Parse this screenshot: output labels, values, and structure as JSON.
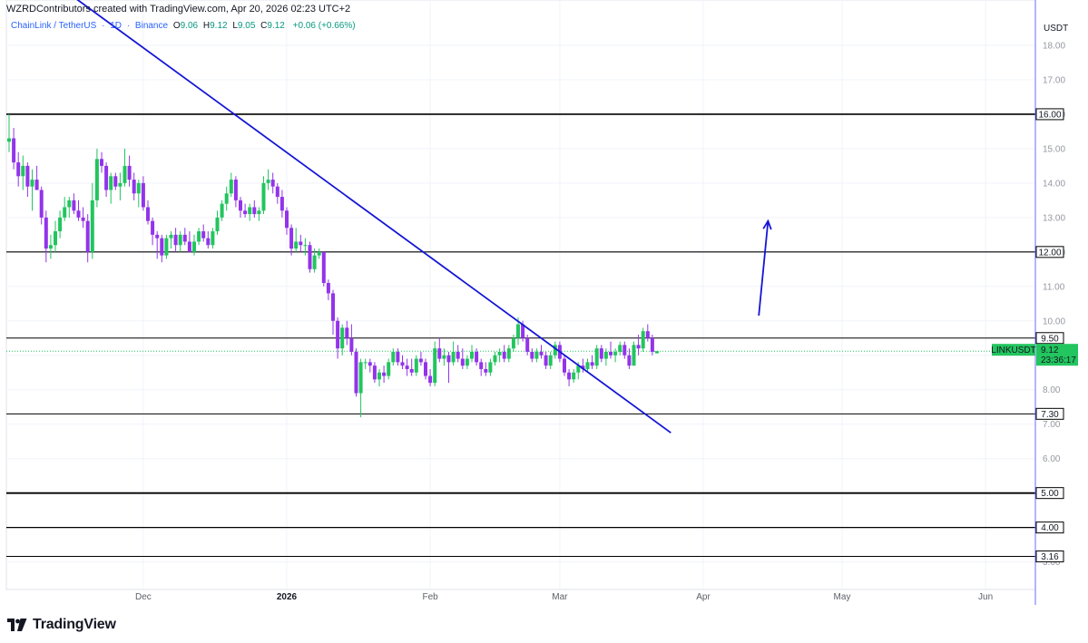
{
  "header": {
    "credit": "WZRDContributors created with TradingView.com, Apr 20, 2026 02:23 UTC+2"
  },
  "legend": {
    "symbol": "ChainLink / TetherUS",
    "interval": "1D",
    "exchange": "Binance",
    "open_label": "O",
    "open": "9.06",
    "high_label": "H",
    "high": "9.12",
    "low_label": "L",
    "low": "9.05",
    "close_label": "C",
    "close": "9.12",
    "change": "+0.06 (+0.66%)"
  },
  "axis": {
    "currency": "USDT"
  },
  "brand": {
    "name": "TradingView"
  },
  "colors": {
    "up": "#22c55e",
    "down": "#9333ea",
    "trendline": "#1515d6",
    "level": "#000000",
    "price_tag": "#22c55e"
  },
  "chart_data": {
    "type": "candlestick",
    "symbol": "LINKUSDT",
    "timeframe": "1D",
    "ylim": [
      2.2,
      19.0
    ],
    "y_ticks": [
      "3.00",
      "4.00",
      "5.00",
      "6.00",
      "7.00",
      "8.00",
      "9.00",
      "10.00",
      "11.00",
      "12.00",
      "13.00",
      "14.00",
      "15.00",
      "16.00",
      "17.00",
      "18.00"
    ],
    "x_ticks": [
      {
        "label": "Dec",
        "index": 29,
        "bold": false
      },
      {
        "label": "2026",
        "index": 60,
        "bold": true
      },
      {
        "label": "Feb",
        "index": 91,
        "bold": false
      },
      {
        "label": "Mar",
        "index": 119,
        "bold": false
      },
      {
        "label": "Apr",
        "index": 150,
        "bold": false
      },
      {
        "label": "May",
        "index": 180,
        "bold": false
      },
      {
        "label": "Jun",
        "index": 211,
        "bold": false
      }
    ],
    "horizontal_levels": [
      {
        "value": 16.0,
        "label": "16.00",
        "width": 1.6
      },
      {
        "value": 12.0,
        "label": "12.00",
        "width": 1.2
      },
      {
        "value": 9.5,
        "label": "9.50",
        "width": 1.0
      },
      {
        "value": 7.3,
        "label": "7.30",
        "width": 1.0
      },
      {
        "value": 5.0,
        "label": "5.00",
        "width": 1.8
      },
      {
        "value": 4.0,
        "label": "4.00",
        "width": 1.2
      },
      {
        "value": 3.16,
        "label": "3.16",
        "width": 1.0
      }
    ],
    "trendline": {
      "start": {
        "index": 14,
        "value": 19.4
      },
      "end": {
        "index": 143,
        "value": 6.75
      }
    },
    "arrow": {
      "start": {
        "index": 162,
        "value": 10.15
      },
      "end": {
        "index": 164,
        "value": 12.9
      }
    },
    "last_price": {
      "symbol": "LINKUSDT",
      "price": "9.12",
      "countdown": "23:36:17",
      "value": 9.12
    },
    "candles": [
      {
        "i": 0,
        "o": 15.2,
        "h": 16.0,
        "l": 14.9,
        "c": 15.3
      },
      {
        "i": 1,
        "o": 15.3,
        "h": 15.6,
        "l": 14.4,
        "c": 14.6
      },
      {
        "i": 2,
        "o": 14.6,
        "h": 14.9,
        "l": 13.9,
        "c": 14.2
      },
      {
        "i": 3,
        "o": 14.2,
        "h": 14.8,
        "l": 13.8,
        "c": 14.5
      },
      {
        "i": 4,
        "o": 14.5,
        "h": 14.6,
        "l": 13.6,
        "c": 13.9
      },
      {
        "i": 5,
        "o": 13.9,
        "h": 14.4,
        "l": 13.2,
        "c": 14.1
      },
      {
        "i": 6,
        "o": 14.1,
        "h": 14.5,
        "l": 13.8,
        "c": 13.8
      },
      {
        "i": 7,
        "o": 13.8,
        "h": 13.9,
        "l": 12.8,
        "c": 13.0
      },
      {
        "i": 8,
        "o": 13.0,
        "h": 13.2,
        "l": 11.7,
        "c": 12.1
      },
      {
        "i": 9,
        "o": 12.1,
        "h": 12.5,
        "l": 11.8,
        "c": 12.2
      },
      {
        "i": 10,
        "o": 12.2,
        "h": 12.9,
        "l": 12.0,
        "c": 12.6
      },
      {
        "i": 11,
        "o": 12.6,
        "h": 13.2,
        "l": 12.4,
        "c": 13.0
      },
      {
        "i": 12,
        "o": 13.0,
        "h": 13.6,
        "l": 12.9,
        "c": 13.3
      },
      {
        "i": 13,
        "o": 13.3,
        "h": 13.6,
        "l": 13.0,
        "c": 13.5
      },
      {
        "i": 14,
        "o": 13.5,
        "h": 13.7,
        "l": 13.1,
        "c": 13.2
      },
      {
        "i": 15,
        "o": 13.2,
        "h": 13.5,
        "l": 12.9,
        "c": 13.0
      },
      {
        "i": 16,
        "o": 13.0,
        "h": 13.3,
        "l": 12.7,
        "c": 12.9
      },
      {
        "i": 17,
        "o": 12.9,
        "h": 13.1,
        "l": 11.7,
        "c": 12.0
      },
      {
        "i": 18,
        "o": 12.0,
        "h": 14.0,
        "l": 11.8,
        "c": 13.5
      },
      {
        "i": 19,
        "o": 13.5,
        "h": 15.0,
        "l": 13.3,
        "c": 14.7
      },
      {
        "i": 20,
        "o": 14.7,
        "h": 14.9,
        "l": 14.3,
        "c": 14.5
      },
      {
        "i": 21,
        "o": 14.5,
        "h": 14.6,
        "l": 13.6,
        "c": 13.8
      },
      {
        "i": 22,
        "o": 13.8,
        "h": 14.3,
        "l": 13.4,
        "c": 14.2
      },
      {
        "i": 23,
        "o": 14.2,
        "h": 14.3,
        "l": 13.8,
        "c": 13.9
      },
      {
        "i": 24,
        "o": 13.9,
        "h": 14.3,
        "l": 13.5,
        "c": 14.0
      },
      {
        "i": 25,
        "o": 14.0,
        "h": 15.0,
        "l": 13.9,
        "c": 14.5
      },
      {
        "i": 26,
        "o": 14.5,
        "h": 14.8,
        "l": 13.9,
        "c": 14.1
      },
      {
        "i": 27,
        "o": 14.1,
        "h": 14.3,
        "l": 13.5,
        "c": 13.7
      },
      {
        "i": 28,
        "o": 13.7,
        "h": 14.1,
        "l": 13.3,
        "c": 14.0
      },
      {
        "i": 29,
        "o": 14.0,
        "h": 14.2,
        "l": 13.2,
        "c": 13.3
      },
      {
        "i": 30,
        "o": 13.3,
        "h": 13.5,
        "l": 12.8,
        "c": 12.9
      },
      {
        "i": 31,
        "o": 12.9,
        "h": 13.0,
        "l": 12.2,
        "c": 12.5
      },
      {
        "i": 32,
        "o": 12.5,
        "h": 12.6,
        "l": 11.8,
        "c": 12.4
      },
      {
        "i": 33,
        "o": 12.4,
        "h": 12.5,
        "l": 11.7,
        "c": 11.9
      },
      {
        "i": 34,
        "o": 11.9,
        "h": 12.5,
        "l": 11.8,
        "c": 12.4
      },
      {
        "i": 35,
        "o": 12.4,
        "h": 12.6,
        "l": 12.1,
        "c": 12.5
      },
      {
        "i": 36,
        "o": 12.5,
        "h": 12.7,
        "l": 12.0,
        "c": 12.2
      },
      {
        "i": 37,
        "o": 12.2,
        "h": 12.6,
        "l": 12.0,
        "c": 12.5
      },
      {
        "i": 38,
        "o": 12.5,
        "h": 12.7,
        "l": 12.2,
        "c": 12.3
      },
      {
        "i": 39,
        "o": 12.3,
        "h": 12.6,
        "l": 12.0,
        "c": 12.0
      },
      {
        "i": 40,
        "o": 12.0,
        "h": 12.5,
        "l": 11.9,
        "c": 12.3
      },
      {
        "i": 41,
        "o": 12.3,
        "h": 12.7,
        "l": 12.2,
        "c": 12.6
      },
      {
        "i": 42,
        "o": 12.6,
        "h": 12.8,
        "l": 12.3,
        "c": 12.4
      },
      {
        "i": 43,
        "o": 12.4,
        "h": 12.6,
        "l": 12.1,
        "c": 12.2
      },
      {
        "i": 44,
        "o": 12.2,
        "h": 12.7,
        "l": 12.1,
        "c": 12.6
      },
      {
        "i": 45,
        "o": 12.6,
        "h": 13.2,
        "l": 12.5,
        "c": 13.0
      },
      {
        "i": 46,
        "o": 13.0,
        "h": 13.5,
        "l": 12.9,
        "c": 13.4
      },
      {
        "i": 47,
        "o": 13.4,
        "h": 13.9,
        "l": 13.2,
        "c": 13.7
      },
      {
        "i": 48,
        "o": 13.7,
        "h": 14.3,
        "l": 13.6,
        "c": 14.1
      },
      {
        "i": 49,
        "o": 14.1,
        "h": 14.2,
        "l": 13.3,
        "c": 13.5
      },
      {
        "i": 50,
        "o": 13.5,
        "h": 13.6,
        "l": 13.0,
        "c": 13.2
      },
      {
        "i": 51,
        "o": 13.2,
        "h": 13.4,
        "l": 13.0,
        "c": 13.1
      },
      {
        "i": 52,
        "o": 13.1,
        "h": 13.4,
        "l": 12.9,
        "c": 13.3
      },
      {
        "i": 53,
        "o": 13.3,
        "h": 13.5,
        "l": 13.0,
        "c": 13.1
      },
      {
        "i": 54,
        "o": 13.1,
        "h": 13.3,
        "l": 12.9,
        "c": 13.2
      },
      {
        "i": 55,
        "o": 13.2,
        "h": 14.2,
        "l": 13.1,
        "c": 14.0
      },
      {
        "i": 56,
        "o": 14.0,
        "h": 14.4,
        "l": 13.8,
        "c": 14.1
      },
      {
        "i": 57,
        "o": 14.1,
        "h": 14.3,
        "l": 13.7,
        "c": 13.9
      },
      {
        "i": 58,
        "o": 13.9,
        "h": 14.0,
        "l": 13.4,
        "c": 13.6
      },
      {
        "i": 59,
        "o": 13.6,
        "h": 13.8,
        "l": 13.0,
        "c": 13.2
      },
      {
        "i": 60,
        "o": 13.2,
        "h": 13.3,
        "l": 12.5,
        "c": 12.7
      },
      {
        "i": 61,
        "o": 12.7,
        "h": 12.8,
        "l": 11.9,
        "c": 12.1
      },
      {
        "i": 62,
        "o": 12.1,
        "h": 12.7,
        "l": 12.0,
        "c": 12.3
      },
      {
        "i": 63,
        "o": 12.3,
        "h": 12.5,
        "l": 12.0,
        "c": 12.2
      },
      {
        "i": 64,
        "o": 12.2,
        "h": 12.4,
        "l": 11.9,
        "c": 12.2
      },
      {
        "i": 65,
        "o": 12.2,
        "h": 12.3,
        "l": 11.4,
        "c": 11.5
      },
      {
        "i": 66,
        "o": 11.5,
        "h": 12.1,
        "l": 11.4,
        "c": 11.9
      },
      {
        "i": 67,
        "o": 11.9,
        "h": 12.1,
        "l": 11.8,
        "c": 12.0
      },
      {
        "i": 68,
        "o": 12.0,
        "h": 12.0,
        "l": 11.0,
        "c": 11.1
      },
      {
        "i": 69,
        "o": 11.1,
        "h": 11.2,
        "l": 10.6,
        "c": 10.8
      },
      {
        "i": 70,
        "o": 10.8,
        "h": 10.9,
        "l": 9.6,
        "c": 10.0
      },
      {
        "i": 71,
        "o": 10.0,
        "h": 10.1,
        "l": 8.9,
        "c": 9.2
      },
      {
        "i": 72,
        "o": 9.2,
        "h": 9.9,
        "l": 9.0,
        "c": 9.8
      },
      {
        "i": 73,
        "o": 9.8,
        "h": 10.0,
        "l": 9.3,
        "c": 9.5
      },
      {
        "i": 74,
        "o": 9.5,
        "h": 9.9,
        "l": 9.0,
        "c": 9.1
      },
      {
        "i": 75,
        "o": 9.1,
        "h": 9.2,
        "l": 7.8,
        "c": 7.9
      },
      {
        "i": 76,
        "o": 7.9,
        "h": 8.9,
        "l": 7.2,
        "c": 8.8
      },
      {
        "i": 77,
        "o": 8.8,
        "h": 8.9,
        "l": 8.6,
        "c": 8.8
      },
      {
        "i": 78,
        "o": 8.8,
        "h": 8.9,
        "l": 8.5,
        "c": 8.7
      },
      {
        "i": 79,
        "o": 8.7,
        "h": 8.8,
        "l": 8.2,
        "c": 8.3
      },
      {
        "i": 80,
        "o": 8.3,
        "h": 8.6,
        "l": 8.1,
        "c": 8.5
      },
      {
        "i": 81,
        "o": 8.5,
        "h": 8.7,
        "l": 8.2,
        "c": 8.4
      },
      {
        "i": 82,
        "o": 8.4,
        "h": 8.9,
        "l": 8.3,
        "c": 8.8
      },
      {
        "i": 83,
        "o": 8.8,
        "h": 9.2,
        "l": 8.7,
        "c": 9.1
      },
      {
        "i": 84,
        "o": 9.1,
        "h": 9.2,
        "l": 8.7,
        "c": 8.8
      },
      {
        "i": 85,
        "o": 8.8,
        "h": 9.0,
        "l": 8.6,
        "c": 8.7
      },
      {
        "i": 86,
        "o": 8.7,
        "h": 8.9,
        "l": 8.4,
        "c": 8.6
      },
      {
        "i": 87,
        "o": 8.6,
        "h": 8.9,
        "l": 8.4,
        "c": 8.5
      },
      {
        "i": 88,
        "o": 8.5,
        "h": 9.0,
        "l": 8.4,
        "c": 8.9
      },
      {
        "i": 89,
        "o": 8.9,
        "h": 9.1,
        "l": 8.7,
        "c": 8.8
      },
      {
        "i": 90,
        "o": 8.8,
        "h": 8.9,
        "l": 8.3,
        "c": 8.4
      },
      {
        "i": 91,
        "o": 8.4,
        "h": 8.6,
        "l": 8.1,
        "c": 8.2
      },
      {
        "i": 92,
        "o": 8.2,
        "h": 9.4,
        "l": 8.1,
        "c": 9.2
      },
      {
        "i": 93,
        "o": 9.2,
        "h": 9.5,
        "l": 8.8,
        "c": 8.9
      },
      {
        "i": 94,
        "o": 8.9,
        "h": 9.2,
        "l": 8.7,
        "c": 9.0
      },
      {
        "i": 95,
        "o": 9.0,
        "h": 9.1,
        "l": 8.2,
        "c": 8.8
      },
      {
        "i": 96,
        "o": 8.8,
        "h": 9.4,
        "l": 8.7,
        "c": 9.1
      },
      {
        "i": 97,
        "o": 9.1,
        "h": 9.3,
        "l": 8.8,
        "c": 8.9
      },
      {
        "i": 98,
        "o": 8.9,
        "h": 9.2,
        "l": 8.6,
        "c": 8.7
      },
      {
        "i": 99,
        "o": 8.7,
        "h": 9.0,
        "l": 8.6,
        "c": 8.9
      },
      {
        "i": 100,
        "o": 8.9,
        "h": 9.3,
        "l": 8.8,
        "c": 9.1
      },
      {
        "i": 101,
        "o": 9.1,
        "h": 9.2,
        "l": 8.7,
        "c": 8.8
      },
      {
        "i": 102,
        "o": 8.8,
        "h": 8.9,
        "l": 8.4,
        "c": 8.6
      },
      {
        "i": 103,
        "o": 8.6,
        "h": 8.8,
        "l": 8.4,
        "c": 8.5
      },
      {
        "i": 104,
        "o": 8.5,
        "h": 8.9,
        "l": 8.4,
        "c": 8.8
      },
      {
        "i": 105,
        "o": 8.8,
        "h": 9.1,
        "l": 8.7,
        "c": 9.0
      },
      {
        "i": 106,
        "o": 9.0,
        "h": 9.2,
        "l": 8.8,
        "c": 9.1
      },
      {
        "i": 107,
        "o": 9.1,
        "h": 9.3,
        "l": 8.8,
        "c": 8.9
      },
      {
        "i": 108,
        "o": 8.9,
        "h": 9.3,
        "l": 8.8,
        "c": 9.2
      },
      {
        "i": 109,
        "o": 9.2,
        "h": 9.6,
        "l": 9.1,
        "c": 9.5
      },
      {
        "i": 110,
        "o": 9.5,
        "h": 10.1,
        "l": 9.3,
        "c": 9.9
      },
      {
        "i": 111,
        "o": 9.9,
        "h": 10.0,
        "l": 9.4,
        "c": 9.5
      },
      {
        "i": 112,
        "o": 9.5,
        "h": 9.6,
        "l": 9.0,
        "c": 9.1
      },
      {
        "i": 113,
        "o": 9.1,
        "h": 9.2,
        "l": 8.8,
        "c": 8.9
      },
      {
        "i": 114,
        "o": 8.9,
        "h": 9.2,
        "l": 8.8,
        "c": 9.1
      },
      {
        "i": 115,
        "o": 9.1,
        "h": 9.3,
        "l": 8.9,
        "c": 9.0
      },
      {
        "i": 116,
        "o": 9.0,
        "h": 9.1,
        "l": 8.6,
        "c": 8.7
      },
      {
        "i": 117,
        "o": 8.7,
        "h": 9.1,
        "l": 8.6,
        "c": 9.0
      },
      {
        "i": 118,
        "o": 9.0,
        "h": 9.4,
        "l": 8.9,
        "c": 9.3
      },
      {
        "i": 119,
        "o": 9.3,
        "h": 9.4,
        "l": 8.8,
        "c": 8.9
      },
      {
        "i": 120,
        "o": 8.9,
        "h": 9.0,
        "l": 8.4,
        "c": 8.5
      },
      {
        "i": 121,
        "o": 8.5,
        "h": 8.6,
        "l": 8.1,
        "c": 8.3
      },
      {
        "i": 122,
        "o": 8.3,
        "h": 8.6,
        "l": 8.2,
        "c": 8.5
      },
      {
        "i": 123,
        "o": 8.5,
        "h": 8.8,
        "l": 8.3,
        "c": 8.7
      },
      {
        "i": 124,
        "o": 8.7,
        "h": 8.9,
        "l": 8.5,
        "c": 8.6
      },
      {
        "i": 125,
        "o": 8.6,
        "h": 8.9,
        "l": 8.5,
        "c": 8.8
      },
      {
        "i": 126,
        "o": 8.8,
        "h": 9.0,
        "l": 8.6,
        "c": 8.7
      },
      {
        "i": 127,
        "o": 8.7,
        "h": 9.3,
        "l": 8.6,
        "c": 9.2
      },
      {
        "i": 128,
        "o": 9.2,
        "h": 9.3,
        "l": 8.8,
        "c": 8.9
      },
      {
        "i": 129,
        "o": 8.9,
        "h": 9.2,
        "l": 8.7,
        "c": 9.1
      },
      {
        "i": 130,
        "o": 9.1,
        "h": 9.4,
        "l": 8.9,
        "c": 9.0
      },
      {
        "i": 131,
        "o": 9.0,
        "h": 9.2,
        "l": 8.8,
        "c": 9.1
      },
      {
        "i": 132,
        "o": 9.1,
        "h": 9.4,
        "l": 9.0,
        "c": 9.3
      },
      {
        "i": 133,
        "o": 9.3,
        "h": 9.4,
        "l": 8.9,
        "c": 9.0
      },
      {
        "i": 134,
        "o": 9.0,
        "h": 9.2,
        "l": 8.6,
        "c": 8.7
      },
      {
        "i": 135,
        "o": 8.7,
        "h": 9.4,
        "l": 8.7,
        "c": 9.3
      },
      {
        "i": 136,
        "o": 9.3,
        "h": 9.6,
        "l": 9.0,
        "c": 9.2
      },
      {
        "i": 137,
        "o": 9.2,
        "h": 9.8,
        "l": 9.1,
        "c": 9.7
      },
      {
        "i": 138,
        "o": 9.7,
        "h": 9.9,
        "l": 9.4,
        "c": 9.5
      },
      {
        "i": 139,
        "o": 9.5,
        "h": 9.6,
        "l": 9.0,
        "c": 9.1
      },
      {
        "i": 140,
        "o": 9.06,
        "h": 9.12,
        "l": 9.05,
        "c": 9.12
      }
    ]
  }
}
